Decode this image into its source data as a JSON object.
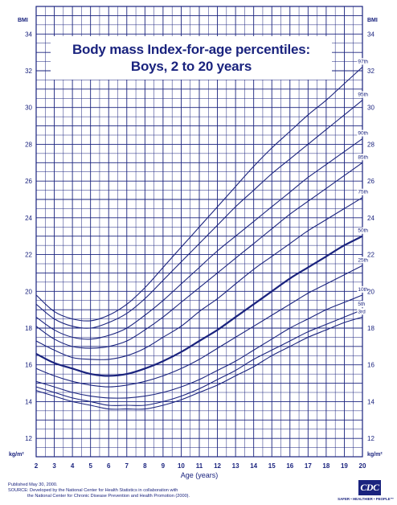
{
  "chart_data": {
    "type": "line",
    "title": "Body mass Index-for-age percentiles:",
    "subtitle": "Boys, 2 to 20 years",
    "xlabel": "Age (years)",
    "ylabel_top": "BMI",
    "unit_label": "kg/m²",
    "xlim": [
      2,
      20
    ],
    "ylim": [
      11,
      35.5
    ],
    "x_ticks": [
      "2",
      "3",
      "4",
      "5",
      "6",
      "7",
      "8",
      "9",
      "10",
      "11",
      "12",
      "13",
      "14",
      "15",
      "16",
      "17",
      "18",
      "19",
      "20"
    ],
    "y_ticks": [
      "12",
      "14",
      "16",
      "18",
      "20",
      "22",
      "24",
      "26",
      "28",
      "30",
      "32",
      "34"
    ],
    "grid": true,
    "series": [
      {
        "name": "3rd",
        "x": [
          2,
          3,
          4,
          5,
          6,
          7,
          8,
          9,
          10,
          11,
          12,
          13,
          14,
          15,
          16,
          17,
          18,
          19,
          20
        ],
        "y": [
          14.6,
          14.3,
          14.0,
          13.8,
          13.6,
          13.6,
          13.6,
          13.8,
          14.1,
          14.5,
          14.9,
          15.4,
          15.9,
          16.5,
          17.0,
          17.5,
          17.9,
          18.3,
          18.6
        ]
      },
      {
        "name": "5th",
        "x": [
          2,
          3,
          4,
          5,
          6,
          7,
          8,
          9,
          10,
          11,
          12,
          13,
          14,
          15,
          16,
          17,
          18,
          19,
          20
        ],
        "y": [
          14.8,
          14.5,
          14.2,
          14.0,
          13.8,
          13.8,
          13.8,
          14.0,
          14.3,
          14.7,
          15.2,
          15.7,
          16.3,
          16.8,
          17.3,
          17.8,
          18.2,
          18.6,
          19.0
        ]
      },
      {
        "name": "10th",
        "x": [
          2,
          3,
          4,
          5,
          6,
          7,
          8,
          9,
          10,
          11,
          12,
          13,
          14,
          15,
          16,
          17,
          18,
          19,
          20
        ],
        "y": [
          15.1,
          14.8,
          14.5,
          14.3,
          14.2,
          14.2,
          14.3,
          14.5,
          14.8,
          15.2,
          15.7,
          16.2,
          16.8,
          17.4,
          18.0,
          18.5,
          19.0,
          19.4,
          19.8
        ]
      },
      {
        "name": "25th",
        "x": [
          2,
          3,
          4,
          5,
          6,
          7,
          8,
          9,
          10,
          11,
          12,
          13,
          14,
          15,
          16,
          17,
          18,
          19,
          20
        ],
        "y": [
          15.8,
          15.4,
          15.1,
          14.9,
          14.8,
          14.9,
          15.1,
          15.4,
          15.8,
          16.3,
          16.9,
          17.5,
          18.1,
          18.7,
          19.3,
          19.9,
          20.4,
          20.9,
          21.4
        ]
      },
      {
        "name": "50th",
        "x": [
          2,
          3,
          4,
          5,
          6,
          7,
          8,
          9,
          10,
          11,
          12,
          13,
          14,
          15,
          16,
          17,
          18,
          19,
          20
        ],
        "y": [
          16.6,
          16.1,
          15.8,
          15.5,
          15.4,
          15.5,
          15.8,
          16.2,
          16.7,
          17.3,
          17.9,
          18.6,
          19.3,
          20.0,
          20.7,
          21.3,
          21.9,
          22.5,
          23.0
        ]
      },
      {
        "name": "75th",
        "x": [
          2,
          3,
          4,
          5,
          6,
          7,
          8,
          9,
          10,
          11,
          12,
          13,
          14,
          15,
          16,
          17,
          18,
          19,
          20
        ],
        "y": [
          17.3,
          16.8,
          16.4,
          16.3,
          16.3,
          16.5,
          16.9,
          17.5,
          18.1,
          18.9,
          19.6,
          20.4,
          21.2,
          21.9,
          22.6,
          23.3,
          23.9,
          24.5,
          25.1
        ]
      },
      {
        "name": "85th",
        "x": [
          2,
          3,
          4,
          5,
          6,
          7,
          8,
          9,
          10,
          11,
          12,
          13,
          14,
          15,
          16,
          17,
          18,
          19,
          20
        ],
        "y": [
          18.1,
          17.4,
          17.0,
          16.9,
          17.0,
          17.3,
          17.9,
          18.6,
          19.4,
          20.2,
          21.0,
          21.8,
          22.6,
          23.4,
          24.2,
          24.9,
          25.6,
          26.3,
          27.0
        ]
      },
      {
        "name": "90th",
        "x": [
          2,
          3,
          4,
          5,
          6,
          7,
          8,
          9,
          10,
          11,
          12,
          13,
          14,
          15,
          16,
          17,
          18,
          19,
          20
        ],
        "y": [
          18.6,
          17.9,
          17.5,
          17.4,
          17.6,
          18.0,
          18.7,
          19.5,
          20.4,
          21.3,
          22.2,
          23.0,
          23.8,
          24.6,
          25.4,
          26.2,
          26.9,
          27.6,
          28.3
        ]
      },
      {
        "name": "95th",
        "x": [
          2,
          3,
          4,
          5,
          6,
          7,
          8,
          9,
          10,
          11,
          12,
          13,
          14,
          15,
          16,
          17,
          18,
          19,
          20
        ],
        "y": [
          19.3,
          18.5,
          18.1,
          18.0,
          18.3,
          18.8,
          19.6,
          20.6,
          21.6,
          22.6,
          23.6,
          24.6,
          25.5,
          26.4,
          27.2,
          28.0,
          28.8,
          29.6,
          30.4
        ]
      },
      {
        "name": "97th",
        "x": [
          2,
          3,
          4,
          5,
          6,
          7,
          8,
          9,
          10,
          11,
          12,
          13,
          14,
          15,
          16,
          17,
          18,
          19,
          20
        ],
        "y": [
          19.8,
          18.9,
          18.5,
          18.4,
          18.7,
          19.3,
          20.2,
          21.3,
          22.4,
          23.5,
          24.6,
          25.7,
          26.8,
          27.8,
          28.7,
          29.6,
          30.4,
          31.3,
          32.2
        ]
      }
    ],
    "legend": "right-end labels"
  },
  "footer": {
    "published": "Published May 30, 2000.",
    "source_line1": "SOURCE: Developed by the National Center for Health Statistics in collaboration with",
    "source_line2": "the National Center for Chronic Disease Prevention and Health Promotion (2000).",
    "logo_text": "CDC",
    "logo_tagline": "SAFER • HEALTHIER • PEOPLE™"
  },
  "colors": {
    "grid": "#1a237e",
    "curve": "#1a237e",
    "background": "#ffffff"
  }
}
